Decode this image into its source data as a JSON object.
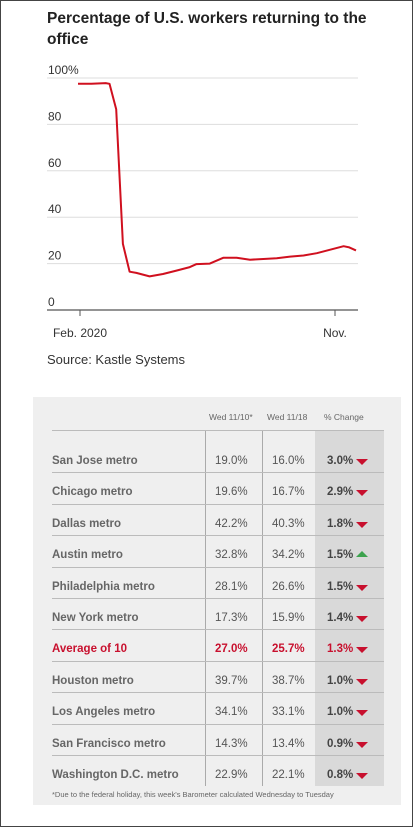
{
  "title": "Percentage of U.S. workers returning to the office",
  "source": "Source: Kastle Systems",
  "chart_data": {
    "type": "line",
    "title": "Percentage of U.S. workers returning to the office",
    "xlabel": "",
    "ylabel": "",
    "x_ticks": [
      "Feb. 2020",
      "Nov."
    ],
    "y_ticks": [
      "100%",
      "80",
      "60",
      "40",
      "20",
      "0"
    ],
    "ylim": [
      0,
      100
    ],
    "grid": true,
    "series": [
      {
        "color": "#d0101f",
        "x": [
          "2020-02-01",
          "2020-02-15",
          "2020-03-01",
          "2020-03-05",
          "2020-03-12",
          "2020-03-19",
          "2020-03-26",
          "2020-04-02",
          "2020-04-16",
          "2020-04-30",
          "2020-05-14",
          "2020-05-28",
          "2020-06-04",
          "2020-06-18",
          "2020-07-02",
          "2020-07-16",
          "2020-07-30",
          "2020-08-13",
          "2020-08-27",
          "2020-09-10",
          "2020-09-24",
          "2020-10-08",
          "2020-10-22",
          "2020-11-05",
          "2020-11-11",
          "2020-11-18"
        ],
        "y": [
          97.5,
          97.5,
          97.8,
          97.5,
          86.5,
          28.5,
          16.5,
          16.0,
          14.5,
          15.5,
          17.0,
          18.5,
          19.8,
          20.0,
          22.5,
          22.5,
          21.7,
          22.0,
          22.3,
          23.0,
          23.5,
          24.5,
          26.0,
          27.5,
          27.0,
          25.7
        ]
      }
    ]
  },
  "table": {
    "headers": [
      "Wed 11/10*",
      "Wed 11/18",
      "% Change"
    ],
    "rows": [
      {
        "name": "San Jose metro",
        "v1": "19.0%",
        "v2": "16.0%",
        "pc": "3.0%",
        "dir": "down"
      },
      {
        "name": "Chicago metro",
        "v1": "19.6%",
        "v2": "16.7%",
        "pc": "2.9%",
        "dir": "down"
      },
      {
        "name": "Dallas metro",
        "v1": "42.2%",
        "v2": "40.3%",
        "pc": "1.8%",
        "dir": "down"
      },
      {
        "name": "Austin metro",
        "v1": "32.8%",
        "v2": "34.2%",
        "pc": "1.5%",
        "dir": "up"
      },
      {
        "name": "Philadelphia metro",
        "v1": "28.1%",
        "v2": "26.6%",
        "pc": "1.5%",
        "dir": "down"
      },
      {
        "name": "New York metro",
        "v1": "17.3%",
        "v2": "15.9%",
        "pc": "1.4%",
        "dir": "down"
      },
      {
        "name": "Average of 10",
        "v1": "27.0%",
        "v2": "25.7%",
        "pc": "1.3%",
        "dir": "down",
        "highlight": true
      },
      {
        "name": "Houston metro",
        "v1": "39.7%",
        "v2": "38.7%",
        "pc": "1.0%",
        "dir": "down"
      },
      {
        "name": "Los Angeles metro",
        "v1": "34.1%",
        "v2": "33.1%",
        "pc": "1.0%",
        "dir": "down"
      },
      {
        "name": "San Francisco metro",
        "v1": "14.3%",
        "v2": "13.4%",
        "pc": "0.9%",
        "dir": "down"
      },
      {
        "name": "Washington D.C. metro",
        "v1": "22.9%",
        "v2": "22.1%",
        "pc": "0.8%",
        "dir": "down"
      }
    ],
    "footnote": "*Due to the federal holiday, this week's Barometer calculated Wednesday to Tuesday"
  },
  "colors": {
    "line": "#d0101f",
    "down": "#c8102e",
    "up": "#3da34e",
    "highlight": "#c8102e"
  },
  "icons": {
    "down": "triangle-down-icon",
    "up": "triangle-up-icon"
  }
}
